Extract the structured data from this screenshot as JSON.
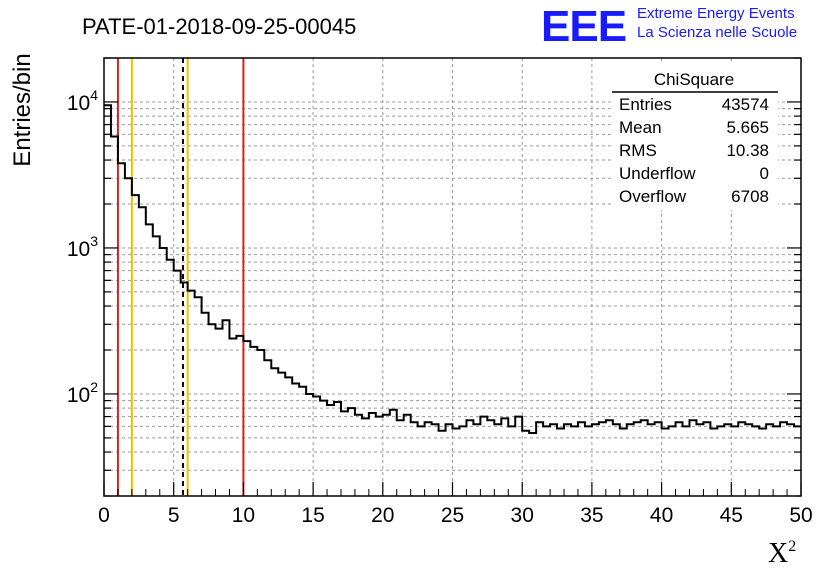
{
  "title": "PATE-01-2018-09-25-00045",
  "logo": {
    "letters": "EEE",
    "line1": "Extreme Energy Events",
    "line2": "La Scienza nelle Scuole",
    "color": "#1a1aff"
  },
  "stats_box": {
    "name": "ChiSquare",
    "rows": [
      {
        "label": "Entries",
        "value": "43574"
      },
      {
        "label": "Mean",
        "value": "5.665"
      },
      {
        "label": "RMS",
        "value": "10.38"
      },
      {
        "label": "Underflow",
        "value": "0"
      },
      {
        "label": "Overflow",
        "value": "6708"
      }
    ]
  },
  "chart_data": {
    "type": "histogram",
    "xlabel": "X",
    "xlabel_sup": "2",
    "ylabel": "Entries/bin",
    "xlim": [
      0,
      50
    ],
    "ylim": [
      20,
      20000
    ],
    "y_log": true,
    "grid": true,
    "bin_width": 0.5,
    "x_ticks": [
      "0",
      "5",
      "10",
      "15",
      "20",
      "25",
      "30",
      "35",
      "40",
      "45",
      "50"
    ],
    "y_ticks": [
      {
        "value": 100,
        "label": "10",
        "exp": "2"
      },
      {
        "value": 1000,
        "label": "10",
        "exp": "3"
      },
      {
        "value": 10000,
        "label": "10",
        "exp": "4"
      }
    ],
    "values": [
      9500,
      5800,
      3800,
      3000,
      2300,
      1900,
      1450,
      1200,
      1000,
      830,
      700,
      580,
      510,
      460,
      360,
      300,
      280,
      320,
      240,
      250,
      230,
      210,
      200,
      170,
      150,
      140,
      130,
      118,
      112,
      100,
      96,
      90,
      84,
      88,
      76,
      80,
      72,
      68,
      74,
      70,
      72,
      78,
      66,
      72,
      64,
      60,
      64,
      62,
      56,
      62,
      58,
      60,
      66,
      62,
      70,
      66,
      62,
      68,
      60,
      70,
      56,
      54,
      64,
      60,
      62,
      58,
      62,
      60,
      64,
      60,
      62,
      64,
      66,
      62,
      58,
      62,
      64,
      66,
      62,
      64,
      58,
      60,
      64,
      60,
      66,
      62,
      64,
      58,
      60,
      62,
      60,
      64,
      62,
      60,
      58,
      62,
      60,
      64,
      62,
      60
    ],
    "vertical_lines": [
      {
        "x": 1.0,
        "color": "#e0201c",
        "style": "solid"
      },
      {
        "x": 2.0,
        "color": "#f0c000",
        "style": "solid"
      },
      {
        "x": 5.665,
        "color": "#000000",
        "style": "dashed"
      },
      {
        "x": 6.0,
        "color": "#f0c000",
        "style": "solid"
      },
      {
        "x": 10.0,
        "color": "#e0201c",
        "style": "solid"
      }
    ]
  }
}
